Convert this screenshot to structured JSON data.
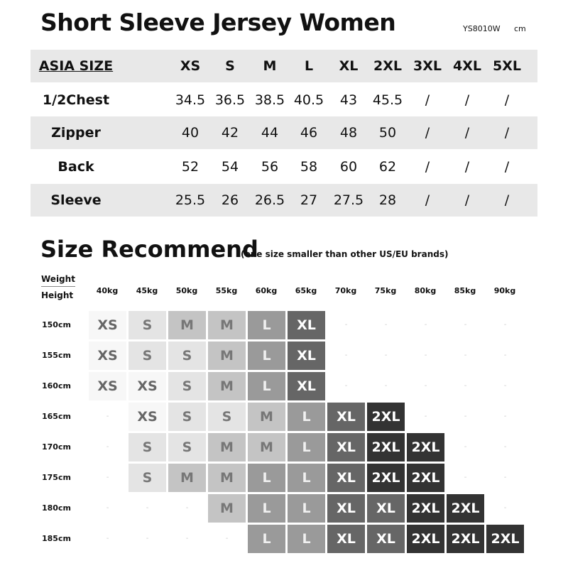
{
  "title": "Short Sleeve Jersey Women",
  "product_code": "YS8010W",
  "unit": "cm",
  "size_table": {
    "header": "ASIA SIZE",
    "sizes": [
      "XS",
      "S",
      "M",
      "L",
      "XL",
      "2XL",
      "3XL",
      "4XL",
      "5XL"
    ],
    "rows": [
      {
        "label": "1/2Chest",
        "values": [
          "34.5",
          "36.5",
          "38.5",
          "40.5",
          "43",
          "45.5",
          "/",
          "/",
          "/"
        ]
      },
      {
        "label": "Zipper",
        "values": [
          "40",
          "42",
          "44",
          "46",
          "48",
          "50",
          "/",
          "/",
          "/"
        ]
      },
      {
        "label": "Back",
        "values": [
          "52",
          "54",
          "56",
          "58",
          "60",
          "62",
          "/",
          "/",
          "/"
        ]
      },
      {
        "label": "Sleeve",
        "values": [
          "25.5",
          "26",
          "26.5",
          "27",
          "27.5",
          "28",
          "/",
          "/",
          "/"
        ]
      }
    ]
  },
  "recommend": {
    "title": "Size Recommend",
    "note": "(one size smaller than other US/EU brands)",
    "weight_label": "Weight",
    "height_label": "Height",
    "weights": [
      "40kg",
      "45kg",
      "50kg",
      "55kg",
      "60kg",
      "65kg",
      "70kg",
      "75kg",
      "80kg",
      "85kg",
      "90kg"
    ],
    "heights": [
      "150cm",
      "155cm",
      "160cm",
      "165cm",
      "170cm",
      "175cm",
      "180cm",
      "185cm"
    ],
    "grid": [
      [
        "XS",
        "S",
        "M",
        "M",
        "L",
        "XL",
        "-",
        "-",
        "-",
        "-",
        "-"
      ],
      [
        "XS",
        "S",
        "S",
        "M",
        "L",
        "XL",
        "-",
        "-",
        "-",
        "-",
        "-"
      ],
      [
        "XS",
        "XS",
        "S",
        "M",
        "L",
        "XL",
        "-",
        "-",
        "-",
        "-",
        "-"
      ],
      [
        "-",
        "XS",
        "S",
        "S",
        "M",
        "L",
        "XL",
        "2XL",
        "-",
        "-",
        "-"
      ],
      [
        "-",
        "S",
        "S",
        "M",
        "M",
        "L",
        "XL",
        "2XL",
        "2XL",
        "-",
        "-"
      ],
      [
        "-",
        "S",
        "M",
        "M",
        "L",
        "L",
        "XL",
        "2XL",
        "2XL",
        "-",
        "-"
      ],
      [
        "-",
        "-",
        "-",
        "M",
        "L",
        "L",
        "XL",
        "XL",
        "2XL",
        "2XL",
        "-"
      ],
      [
        "-",
        "-",
        "-",
        "-",
        "L",
        "L",
        "XL",
        "XL",
        "2XL",
        "2XL",
        "2XL"
      ]
    ],
    "size_colors": {
      "XS": [
        "#f7f7f7",
        "#666666"
      ],
      "S": [
        "#e4e4e4",
        "#777777"
      ],
      "M": [
        "#c4c4c4",
        "#777777"
      ],
      "L": [
        "#9a9a9a",
        "#f0f0f0"
      ],
      "XL": [
        "#666666",
        "#ffffff"
      ],
      "2XL": [
        "#333333",
        "#ffffff"
      ]
    }
  }
}
